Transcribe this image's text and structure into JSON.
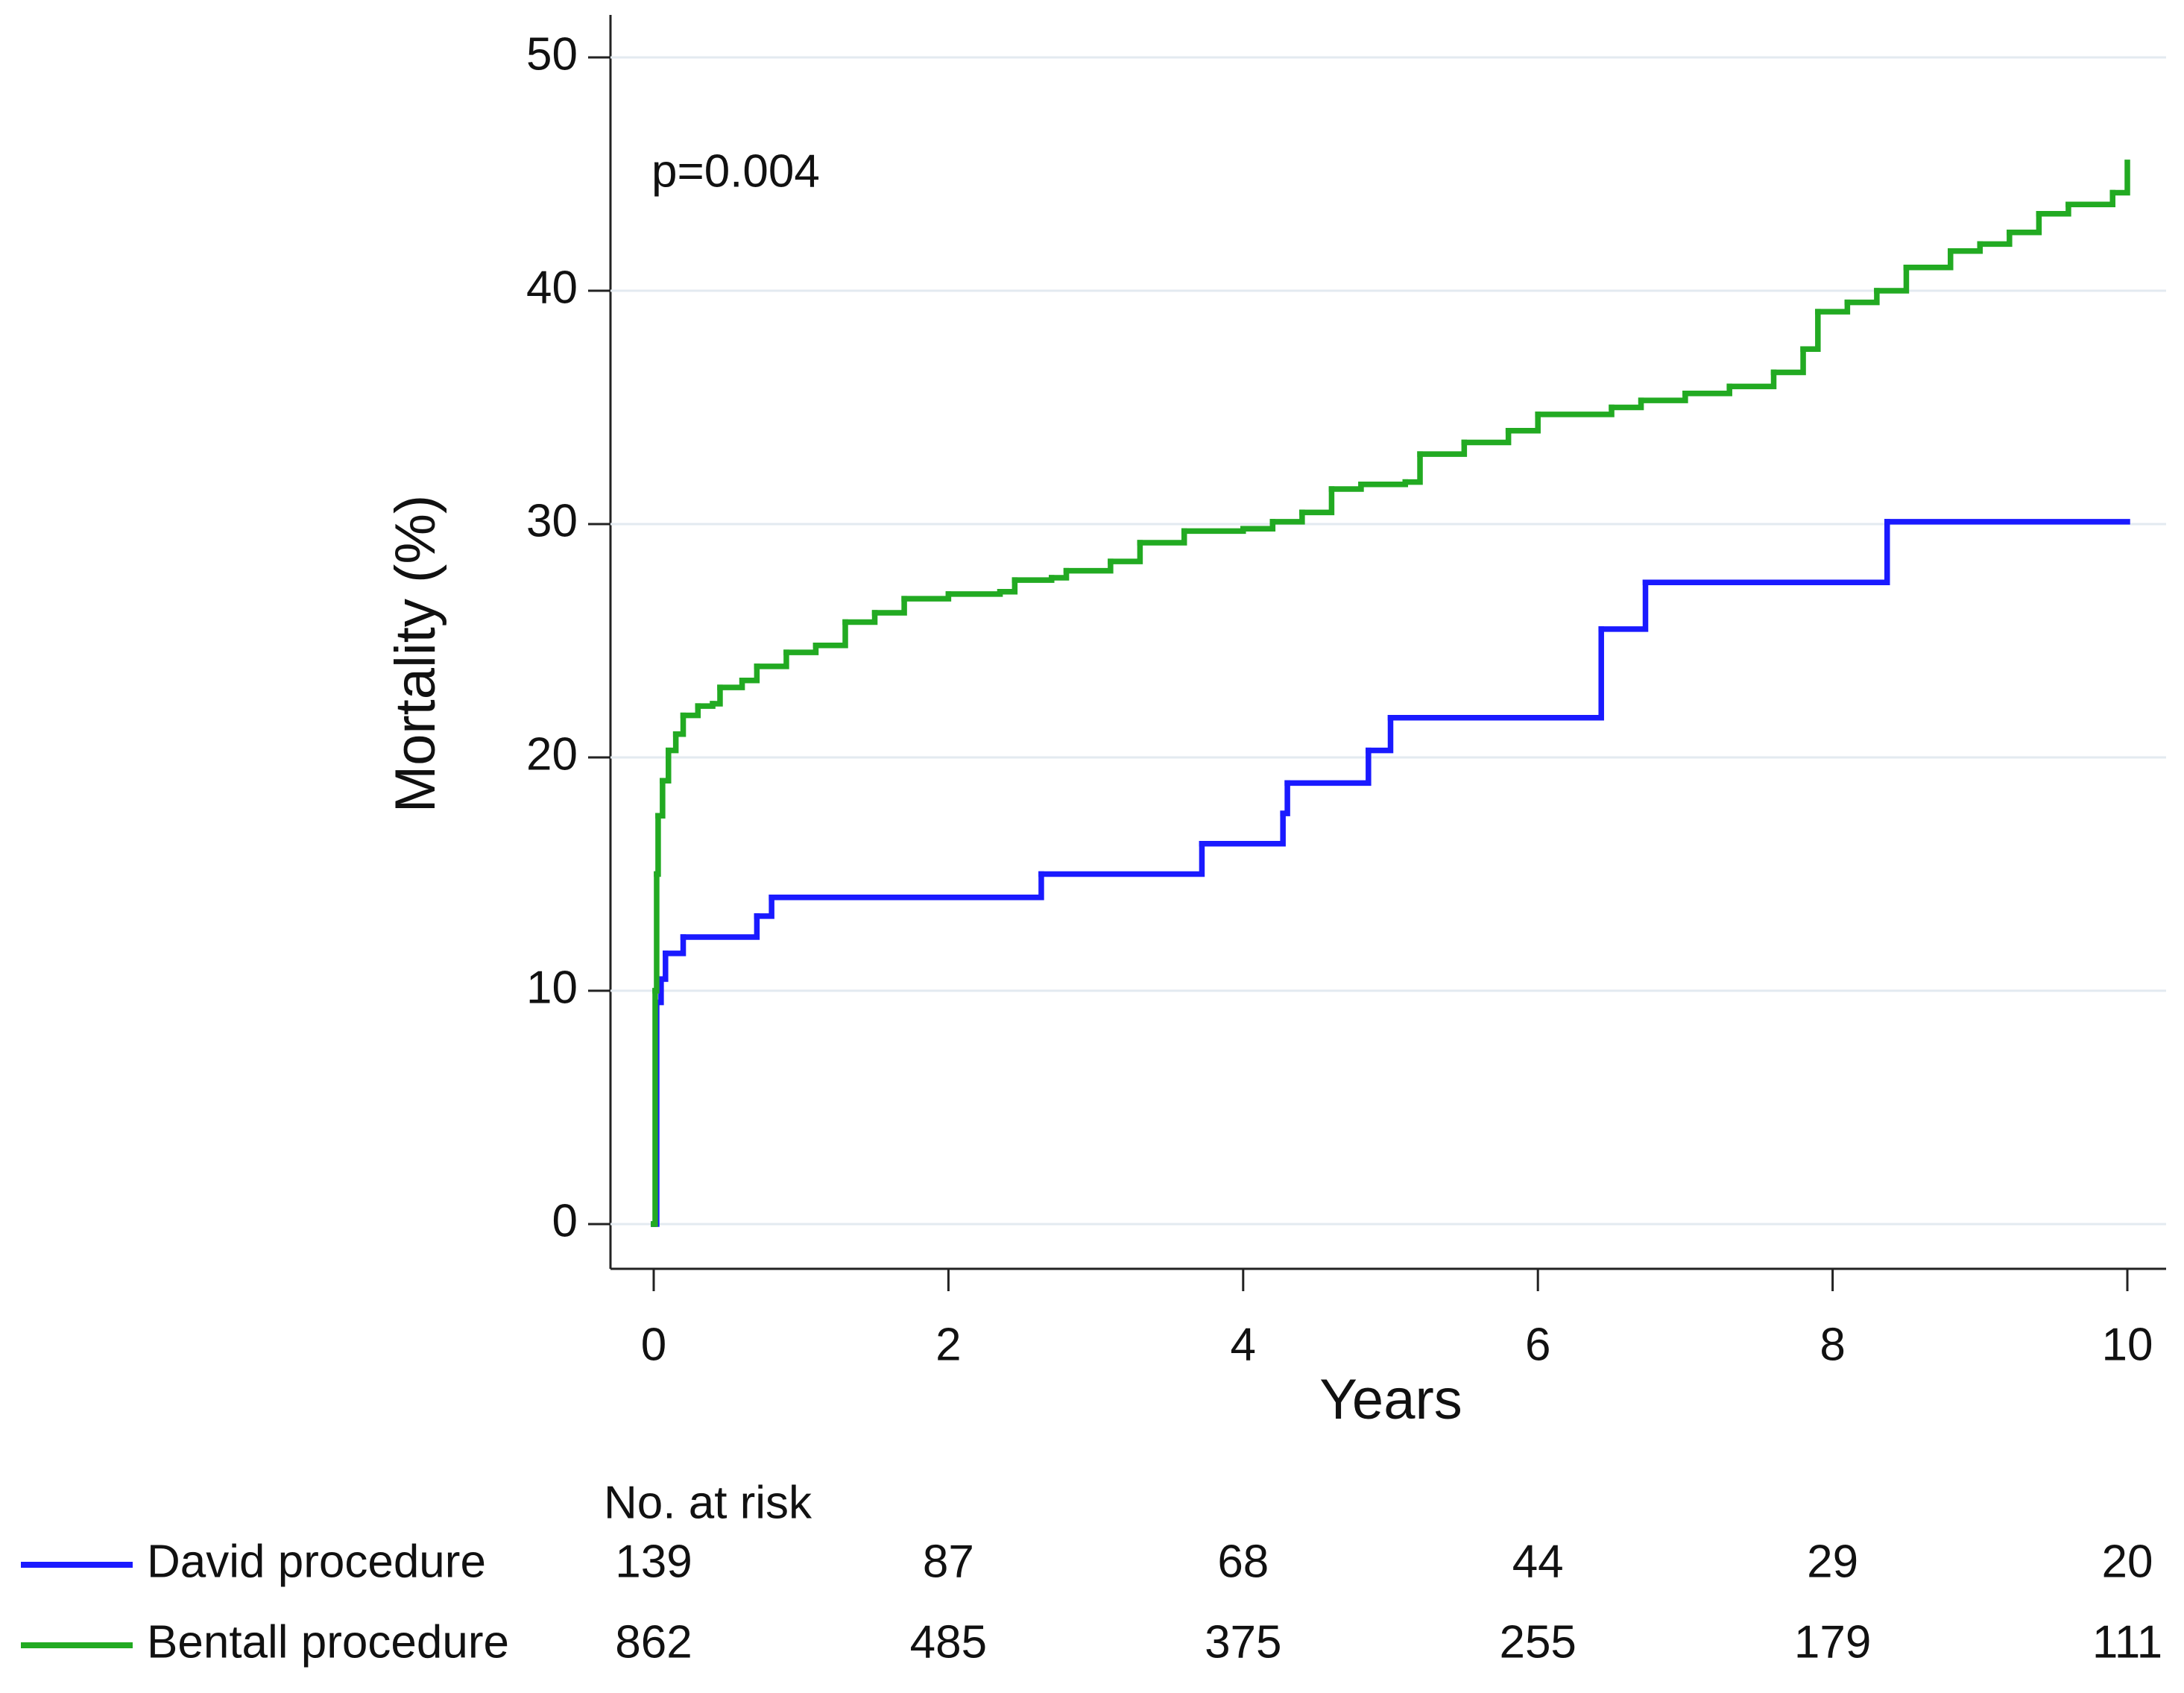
{
  "chart_data": {
    "type": "step",
    "y_label": "Mortality (%)",
    "x_label": "Years",
    "annotation": "p=0.004",
    "xlim": [
      0,
      10
    ],
    "xticks": [
      0,
      2,
      4,
      6,
      8,
      10
    ],
    "ylim": [
      0,
      50
    ],
    "yticks": [
      0,
      10,
      20,
      30,
      40,
      50
    ],
    "grid": true,
    "series": [
      {
        "name": "David procedure",
        "color": "#1a1aff",
        "x": [
          0,
          0.02,
          0.05,
          0.08,
          0.2,
          0.7,
          0.8,
          2.63,
          3.72,
          4.27,
          4.3,
          4.85,
          5,
          6.43,
          6.73,
          8.37,
          10
        ],
        "values": [
          0,
          9.5,
          10.5,
          11.6,
          12.3,
          13.2,
          14,
          15,
          16.3,
          17.6,
          18.9,
          20.3,
          21.7,
          25.5,
          27.5,
          30.1,
          30.1
        ]
      },
      {
        "name": "Bentall procedure",
        "color": "#22aa22",
        "x": [
          0,
          0.01,
          0.02,
          0.03,
          0.06,
          0.1,
          0.15,
          0.2,
          0.3,
          0.4,
          0.45,
          0.6,
          0.7,
          0.9,
          1.1,
          1.3,
          1.5,
          1.7,
          2,
          2.35,
          2.45,
          2.7,
          2.8,
          3.1,
          3.3,
          3.6,
          4,
          4.2,
          4.4,
          4.6,
          4.8,
          5.1,
          5.2,
          5.5,
          5.8,
          6,
          6.5,
          6.7,
          7,
          7.3,
          7.6,
          7.8,
          7.9,
          8.1,
          8.3,
          8.5,
          8.8,
          9,
          9.2,
          9.4,
          9.6,
          9.9,
          10
        ],
        "values": [
          0,
          10,
          15,
          17.5,
          19,
          20.3,
          21,
          21.8,
          22.2,
          22.3,
          23,
          23.3,
          23.9,
          24.5,
          24.8,
          25.8,
          26.2,
          26.8,
          27,
          27.1,
          27.6,
          27.7,
          28,
          28.4,
          29.2,
          29.7,
          29.8,
          30.1,
          30.5,
          31.5,
          31.7,
          31.8,
          33,
          33.5,
          34,
          34.7,
          35,
          35.3,
          35.6,
          35.9,
          36.5,
          37.5,
          39.1,
          39.5,
          40,
          41,
          41.7,
          42,
          42.5,
          43.3,
          43.7,
          44.2,
          45.5
        ]
      }
    ],
    "at_risk": {
      "title": "No. at risk",
      "rows": [
        [
          139,
          87,
          68,
          44,
          29,
          20
        ],
        [
          862,
          485,
          375,
          255,
          179,
          111
        ]
      ]
    }
  }
}
